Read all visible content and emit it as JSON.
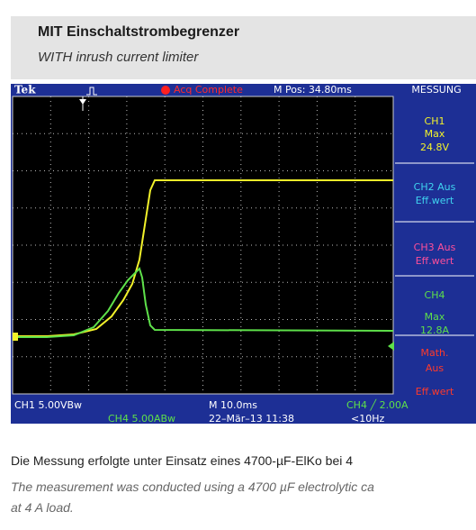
{
  "header": {
    "title": "MIT Einschaltstrombegrenzer",
    "subtitle": "WITH inrush current limiter"
  },
  "scope": {
    "top_bar": {
      "brand": "Tek",
      "status": "Acq Complete",
      "position": "M Pos: 34.80ms",
      "menu": "MESSUNG"
    },
    "panel": [
      {
        "lines": [
          "CH1",
          "Max",
          "24.8V"
        ],
        "color": "#f2f22a"
      },
      {
        "lines": [
          "CH2 Aus",
          "Eff.wert"
        ],
        "color": "#3fd4f0"
      },
      {
        "lines": [
          "CH3 Aus",
          "Eff.wert"
        ],
        "color": "#ff4f9a"
      },
      {
        "lines": [
          "CH4",
          "Max",
          "12.8A"
        ],
        "color": "#5ee04a"
      },
      {
        "lines": [
          "Math.",
          "Aus",
          "Eff.wert"
        ],
        "color": "#ff3a2a"
      }
    ],
    "bottom_bar": {
      "ch1_scale": "CH1  5.00VBw",
      "timebase": "M 10.0ms",
      "trigger": "CH4 ╱ 2.00A",
      "ch4_scale": "CH4  5.00ABw",
      "date": "22–Mär–13 11:38",
      "freq": "<10Hz"
    }
  },
  "caption": {
    "german": "Die Messung erfolgte unter Einsatz eines 4700-µF-ElKo bei 4",
    "english_lines": [
      "The measurement was conducted using a 4700 µF electrolytic ca",
      "at 4 A load."
    ]
  }
}
